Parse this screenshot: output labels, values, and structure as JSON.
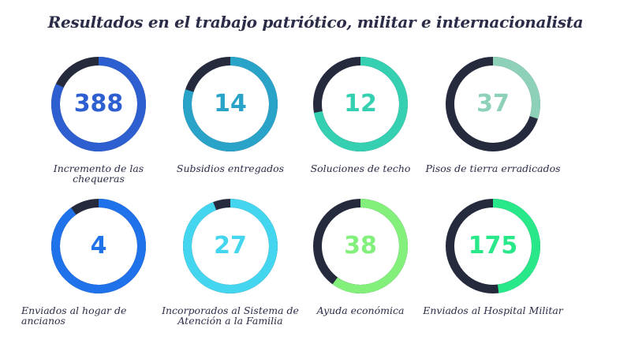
{
  "title": "Resultados en el trabajo patriótico, militar e internacionalista",
  "track_color": "#262a3d",
  "stats": [
    {
      "value": "388",
      "label": "Incremento de las chequeras",
      "color": "#2e5fd1",
      "fraction": 0.82
    },
    {
      "value": "14",
      "label": "Subsidios entregados",
      "color": "#2aa3c9",
      "fraction": 0.8
    },
    {
      "value": "12",
      "label": "Soluciones de techo",
      "color": "#35cfb2",
      "fraction": 0.72
    },
    {
      "value": "37",
      "label": "Pisos de tierra erradicados",
      "color": "#8cd1b8",
      "fraction": 0.3
    },
    {
      "value": "4",
      "label": "Enviados al hogar de ancianos",
      "color": "#1f72ea",
      "fraction": 0.9
    },
    {
      "value": "27",
      "label": "Incorporados al Sistema de Atención a la Familia",
      "color": "#44d6ee",
      "fraction": 0.94
    },
    {
      "value": "38",
      "label": "Ayuda económica",
      "color": "#82f07a",
      "fraction": 0.6
    },
    {
      "value": "175",
      "label": "Enviados al Hospital Militar",
      "color": "#29e889",
      "fraction": 0.48
    }
  ]
}
